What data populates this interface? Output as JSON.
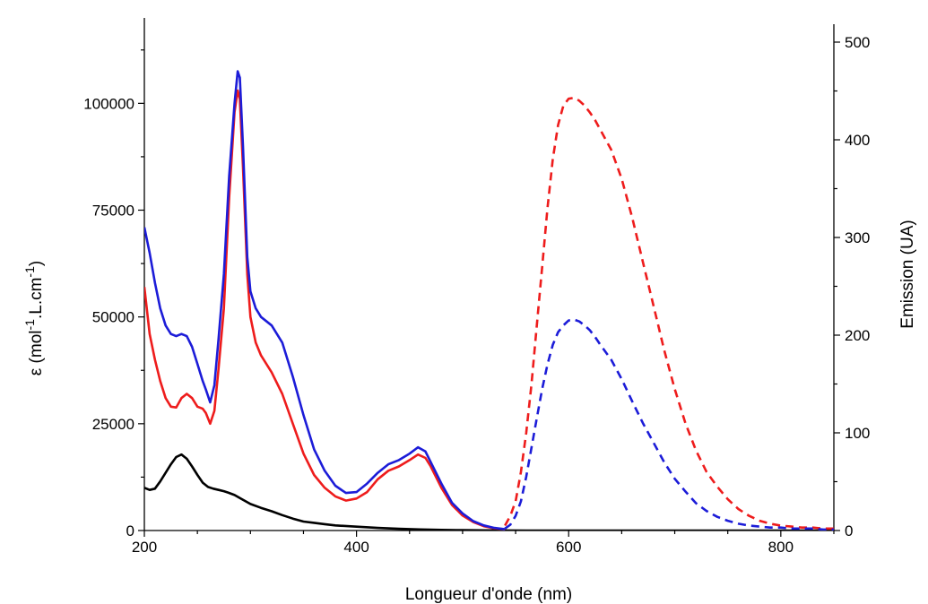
{
  "chart_data": {
    "type": "line",
    "xlabel": "Longueur d'onde (nm)",
    "ylabel_left": "ε (mol-1.L.cm-1)",
    "ylabel_left_parts": {
      "eps": "ε (mol",
      "sup1": "-1",
      "mid": ".L.cm",
      "sup2": "-1",
      "end": ")"
    },
    "ylabel_right": "Emission (UA)",
    "xlim": [
      200,
      850
    ],
    "ylim_left": [
      0,
      120000
    ],
    "ylim_right": [
      0,
      500
    ],
    "x_ticks": [
      200,
      400,
      600,
      800
    ],
    "y_left_ticks": [
      0,
      25000,
      50000,
      75000,
      100000
    ],
    "y_right_ticks": [
      0,
      100,
      200,
      300,
      400,
      500
    ],
    "grid": false,
    "legend": "none",
    "series": [
      {
        "axis": "left",
        "style": "solid",
        "color": "#000000",
        "x": [
          200,
          205,
          210,
          215,
          220,
          225,
          230,
          235,
          240,
          245,
          250,
          255,
          260,
          265,
          270,
          275,
          280,
          285,
          290,
          300,
          310,
          320,
          330,
          340,
          350,
          360,
          370,
          380,
          400,
          420,
          440,
          460,
          480,
          500,
          520,
          540,
          560,
          600,
          700,
          850
        ],
        "y": [
          10000,
          9500,
          9800,
          11500,
          13500,
          15500,
          17200,
          17800,
          16800,
          15000,
          13000,
          11200,
          10200,
          9800,
          9500,
          9200,
          8800,
          8300,
          7600,
          6200,
          5300,
          4500,
          3600,
          2800,
          2100,
          1800,
          1500,
          1200,
          900,
          600,
          400,
          250,
          150,
          80,
          40,
          20,
          10,
          0,
          0,
          0
        ]
      },
      {
        "axis": "left",
        "style": "solid",
        "color": "#ee1c1c",
        "x": [
          200,
          205,
          210,
          215,
          220,
          225,
          230,
          235,
          240,
          245,
          250,
          255,
          258,
          262,
          266,
          270,
          275,
          280,
          285,
          288,
          290,
          293,
          297,
          300,
          305,
          310,
          320,
          330,
          340,
          350,
          360,
          370,
          380,
          390,
          400,
          410,
          420,
          430,
          440,
          450,
          458,
          465,
          470,
          480,
          490,
          500,
          510,
          520,
          530,
          540
        ],
        "y": [
          57000,
          46000,
          40000,
          35000,
          31000,
          29000,
          28800,
          31000,
          32000,
          31000,
          29000,
          28500,
          27500,
          25000,
          28000,
          38000,
          52000,
          78000,
          98000,
          103000,
          101000,
          85000,
          60000,
          50000,
          44000,
          41000,
          37000,
          32000,
          25000,
          18000,
          13000,
          10000,
          8000,
          7000,
          7500,
          9000,
          12000,
          14000,
          15000,
          16500,
          17800,
          17000,
          15000,
          10000,
          6000,
          3500,
          2000,
          1000,
          500,
          300
        ]
      },
      {
        "axis": "left",
        "style": "solid",
        "color": "#1c1cd8",
        "x": [
          200,
          205,
          210,
          215,
          220,
          225,
          230,
          235,
          240,
          245,
          250,
          255,
          258,
          262,
          266,
          270,
          275,
          280,
          285,
          288,
          290,
          293,
          297,
          300,
          305,
          310,
          320,
          330,
          340,
          350,
          360,
          370,
          380,
          390,
          400,
          410,
          420,
          430,
          440,
          450,
          458,
          465,
          470,
          480,
          490,
          500,
          510,
          520,
          530,
          540
        ],
        "y": [
          71000,
          65000,
          58000,
          52000,
          48000,
          46000,
          45500,
          46000,
          45500,
          43000,
          39000,
          35000,
          33000,
          30000,
          34000,
          45000,
          60000,
          83000,
          100000,
          107500,
          106000,
          90000,
          64000,
          56000,
          52000,
          50000,
          48000,
          44000,
          36000,
          27000,
          19000,
          14000,
          10500,
          8800,
          9000,
          11000,
          13500,
          15500,
          16500,
          18000,
          19500,
          18500,
          16000,
          11000,
          6500,
          4000,
          2200,
          1200,
          600,
          300
        ]
      },
      {
        "axis": "right",
        "style": "dashed",
        "color": "#ee1c1c",
        "x": [
          540,
          545,
          550,
          555,
          560,
          565,
          570,
          575,
          580,
          585,
          590,
          595,
          600,
          605,
          610,
          615,
          620,
          625,
          630,
          640,
          650,
          660,
          670,
          680,
          690,
          700,
          710,
          720,
          730,
          740,
          750,
          760,
          770,
          780,
          790,
          800,
          810,
          820,
          830,
          840,
          850
        ],
        "y": [
          5,
          15,
          30,
          60,
          100,
          150,
          210,
          270,
          330,
          380,
          415,
          435,
          442,
          443,
          440,
          435,
          428,
          420,
          410,
          390,
          360,
          320,
          275,
          230,
          185,
          145,
          110,
          82,
          60,
          45,
          32,
          22,
          15,
          10,
          7,
          5,
          4,
          3,
          3,
          2,
          2
        ]
      },
      {
        "axis": "right",
        "style": "dashed",
        "color": "#1c1cd8",
        "x": [
          540,
          545,
          550,
          555,
          560,
          565,
          570,
          575,
          580,
          585,
          590,
          595,
          600,
          605,
          610,
          615,
          620,
          625,
          630,
          640,
          650,
          660,
          670,
          680,
          690,
          700,
          710,
          720,
          730,
          740,
          750,
          760,
          770,
          780,
          790,
          800,
          810,
          820,
          830,
          840,
          850
        ],
        "y": [
          2,
          6,
          15,
          30,
          55,
          85,
          115,
          145,
          170,
          190,
          203,
          210,
          215,
          216,
          214,
          210,
          205,
          198,
          190,
          175,
          155,
          132,
          110,
          90,
          70,
          53,
          40,
          28,
          20,
          14,
          10,
          7,
          5,
          4,
          3,
          3,
          2,
          2,
          2,
          1,
          1
        ]
      }
    ]
  }
}
